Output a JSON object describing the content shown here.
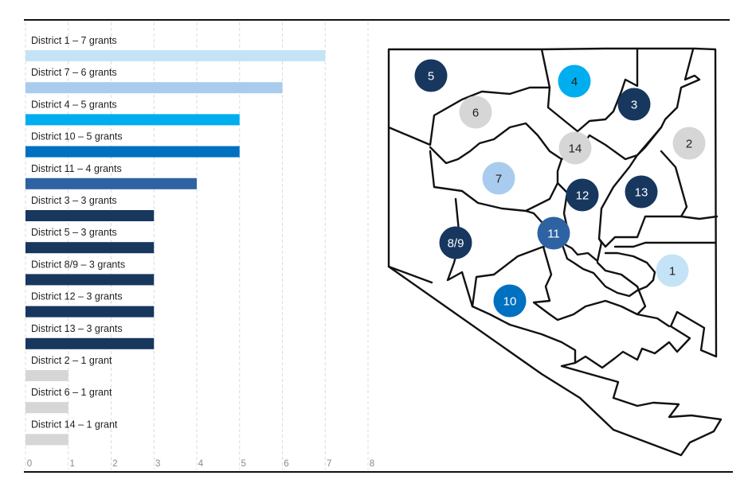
{
  "chart_data": {
    "type": "bar",
    "orientation": "horizontal",
    "title": "",
    "xlabel": "",
    "ylabel": "",
    "xlim": [
      0,
      8
    ],
    "ticks": [
      "0",
      "1",
      "2",
      "3",
      "4",
      "5",
      "6",
      "7",
      "8"
    ],
    "grid": true,
    "bars": [
      {
        "label": "District 1 – 7 grants",
        "value": 7,
        "color": "#c5e3f6"
      },
      {
        "label": "District 7 – 6 grants",
        "value": 6,
        "color": "#a9ccee"
      },
      {
        "label": "District 4 – 5 grants",
        "value": 5,
        "color": "#00aeef"
      },
      {
        "label": "District 10 – 5 grants",
        "value": 5,
        "color": "#0070c0"
      },
      {
        "label": "District 11 – 4 grants",
        "value": 4,
        "color": "#2e63a3"
      },
      {
        "label": "District 3 – 3 grants",
        "value": 3,
        "color": "#17375e"
      },
      {
        "label": "District 5 – 3 grants",
        "value": 3,
        "color": "#17375e"
      },
      {
        "label": "District 8/9 – 3 grants",
        "value": 3,
        "color": "#17375e"
      },
      {
        "label": "District 12 – 3 grants",
        "value": 3,
        "color": "#17375e"
      },
      {
        "label": "District 13 – 3 grants",
        "value": 3,
        "color": "#17375e"
      },
      {
        "label": "District 2 – 1 grant",
        "value": 1,
        "color": "#d6d6d6"
      },
      {
        "label": "District 6 – 1 grant",
        "value": 1,
        "color": "#d6d6d6"
      },
      {
        "label": "District 14 – 1 grant",
        "value": 1,
        "color": "#d6d6d6"
      }
    ]
  },
  "map": {
    "districts": [
      {
        "id": "5",
        "color": "#17375e",
        "text_color": "#ffffff"
      },
      {
        "id": "4",
        "color": "#00aeef",
        "text_color": "#1f1f1f"
      },
      {
        "id": "6",
        "color": "#d6d6d6",
        "text_color": "#1f1f1f"
      },
      {
        "id": "3",
        "color": "#17375e",
        "text_color": "#ffffff"
      },
      {
        "id": "14",
        "color": "#d6d6d6",
        "text_color": "#1f1f1f"
      },
      {
        "id": "2",
        "color": "#d6d6d6",
        "text_color": "#1f1f1f"
      },
      {
        "id": "7",
        "color": "#a9ccee",
        "text_color": "#1f1f1f"
      },
      {
        "id": "12",
        "color": "#17375e",
        "text_color": "#ffffff"
      },
      {
        "id": "13",
        "color": "#17375e",
        "text_color": "#ffffff"
      },
      {
        "id": "11",
        "color": "#2e63a3",
        "text_color": "#ffffff"
      },
      {
        "id": "8/9",
        "color": "#17375e",
        "text_color": "#ffffff"
      },
      {
        "id": "1",
        "color": "#c5e3f6",
        "text_color": "#1f1f1f"
      },
      {
        "id": "10",
        "color": "#0070c0",
        "text_color": "#ffffff"
      }
    ]
  }
}
